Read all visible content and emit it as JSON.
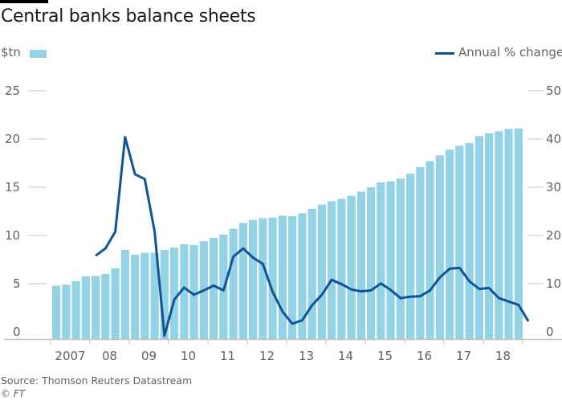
{
  "chart_data": {
    "type": "bar",
    "title": "Central banks balance sheets",
    "left_axis": {
      "label": "$tn",
      "ticks": [
        0,
        5,
        10,
        15,
        20,
        25
      ],
      "range": [
        0,
        25
      ]
    },
    "right_axis": {
      "label": "",
      "ticks": [
        0,
        10,
        20,
        30,
        40,
        50
      ],
      "range": [
        0,
        50
      ]
    },
    "x_tick_labels": [
      "2007",
      "08",
      "09",
      "10",
      "11",
      "12",
      "13",
      "14",
      "15",
      "16",
      "17",
      "18"
    ],
    "legend": [
      {
        "name": "$tn",
        "type": "bar",
        "color": "#94d3e6"
      },
      {
        "name": "Annual % change",
        "type": "line",
        "color": "#0f5499"
      }
    ],
    "legend_position": "top",
    "grid": false,
    "series": [
      {
        "name": "$tn",
        "axis": "left",
        "frequency": "quarterly",
        "start": "2007 Q1",
        "values": [
          4.8,
          4.9,
          5.25,
          5.75,
          5.8,
          6.0,
          6.6,
          8.5,
          8.0,
          8.2,
          8.2,
          8.5,
          8.75,
          9.1,
          9.0,
          9.4,
          9.75,
          10.1,
          10.7,
          11.3,
          11.6,
          11.8,
          11.85,
          12.05,
          12.0,
          12.3,
          12.75,
          13.2,
          13.55,
          13.8,
          14.1,
          14.55,
          15.0,
          15.5,
          15.6,
          15.9,
          16.4,
          17.1,
          17.7,
          18.3,
          18.9,
          19.3,
          19.6,
          20.3,
          20.6,
          20.8,
          21.05,
          21.1
        ]
      },
      {
        "name": "Annual % change",
        "axis": "right",
        "frequency": "quarterly",
        "start": "2008 Q1",
        "values": [
          15.8,
          17.3,
          20.8,
          40.4,
          32.7,
          31.7,
          20.8,
          -0.8,
          6.7,
          9.2,
          7.7,
          8.6,
          9.6,
          8.6,
          15.6,
          17.3,
          15.4,
          14.1,
          8.3,
          4.2,
          1.7,
          2.4,
          5.5,
          7.7,
          10.8,
          9.9,
          8.8,
          8.4,
          8.6,
          10.05,
          8.7,
          7.0,
          7.3,
          7.4,
          8.6,
          11.3,
          13.1,
          13.3,
          10.5,
          8.9,
          9.1,
          7.0,
          6.3,
          5.6,
          2.2
        ]
      }
    ]
  },
  "header": {
    "title": "Central banks balance sheets"
  },
  "legend": {
    "bar_label": "$tn",
    "line_label": "Annual % change"
  },
  "footer": {
    "source": "Source: Thomson Reuters Datastream",
    "credit": "© FT"
  }
}
